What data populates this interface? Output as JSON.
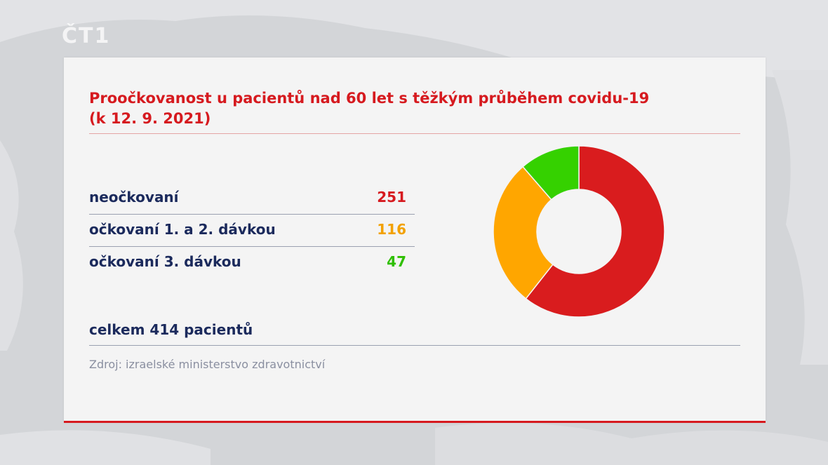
{
  "logo": "ČT1",
  "title_line1": "Proočkovanost u pacientů nad 60 let s těžkým průběhem covidu-19",
  "title_line2": "(k 12. 9. 2021)",
  "total": "celkem 414 pacientů",
  "source": "Zdroj: izraelské ministerstvo zdravotnictví",
  "colors": {
    "accent": "#d61a1f",
    "navy": "#1b2a5c"
  },
  "chart_data": {
    "type": "pie",
    "donut": true,
    "title": "Proočkovanost u pacientů nad 60 let s těžkým průběhem covidu-19 (k 12. 9. 2021)",
    "categories": [
      "neočkovaní",
      "očkovaní 1. a 2. dávkou",
      "očkovaní 3. dávkou"
    ],
    "values": [
      251,
      116,
      47
    ],
    "value_labels": [
      "251",
      "116",
      "47"
    ],
    "colors": [
      "#d91c1e",
      "#ffa600",
      "#35d100"
    ]
  }
}
